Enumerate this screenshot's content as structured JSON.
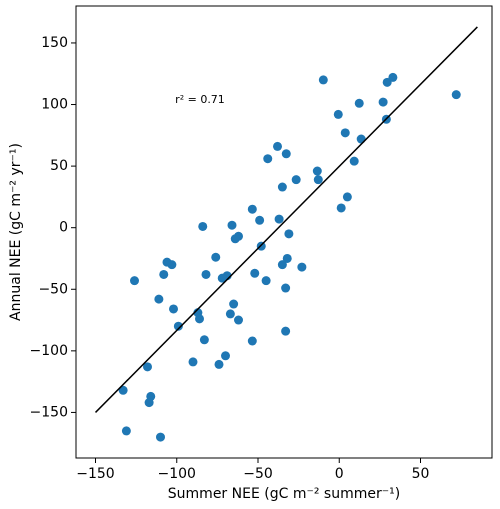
{
  "chart_data": {
    "type": "scatter",
    "x_label": "Summer NEE (gC m⁻² summer⁻¹)",
    "y_label": "Annual NEE (gC m⁻² yr⁻¹)",
    "annotation": "r² = 0.71",
    "color": "#1f77b4",
    "x": [
      -9.8,
      29.5,
      33,
      72,
      -0.6,
      3.7,
      12.3,
      27,
      29,
      13.5,
      -38,
      -44,
      -32.6,
      9.2,
      -13.5,
      -12.9,
      -26.5,
      -35,
      5,
      1.2,
      -53.5,
      -49,
      -37,
      -66,
      -84,
      -31,
      -62,
      -64,
      -48,
      -76,
      -32,
      -35,
      -23,
      -106,
      -103,
      -108,
      -82,
      -69,
      -72,
      -52,
      -45,
      -126,
      -33,
      -111,
      -102,
      -65,
      -67,
      -62,
      -87,
      -86,
      -99,
      -33,
      -83,
      -53.5,
      -70,
      -90,
      -74,
      -118,
      -133,
      -116,
      -117,
      -131,
      -110
    ],
    "values": [
      120,
      118,
      122,
      108,
      92,
      77,
      101,
      102,
      88,
      72,
      66,
      56,
      60,
      54,
      46,
      39,
      39,
      33,
      25,
      16,
      15,
      6,
      7,
      2,
      1,
      -5,
      -7,
      -9,
      -15,
      -24,
      -25,
      -30,
      -32,
      -28,
      -30,
      -38,
      -38,
      -39,
      -41,
      -37,
      -43,
      -43,
      -49,
      -58,
      -66,
      -62,
      -70,
      -75,
      -69,
      -74,
      -80,
      -84,
      -91,
      -92,
      -104,
      -109,
      -111,
      -113,
      -132,
      -137,
      -142,
      -165,
      -170
    ],
    "line": {
      "x": [
        -150,
        85
      ],
      "y": [
        -150,
        163
      ],
      "color": "#000000"
    },
    "xlim": [
      -162,
      94
    ],
    "ylim": [
      -187,
      180
    ],
    "xticks": [
      {
        "value": -150,
        "label": "−150"
      },
      {
        "value": -100,
        "label": "−100"
      },
      {
        "value": -50,
        "label": "−50"
      },
      0,
      50
    ],
    "yticks": [
      {
        "value": -150,
        "label": "−150"
      },
      {
        "value": -100,
        "label": "−100"
      },
      {
        "value": -50,
        "label": "−50"
      },
      0,
      50,
      100,
      150
    ]
  }
}
